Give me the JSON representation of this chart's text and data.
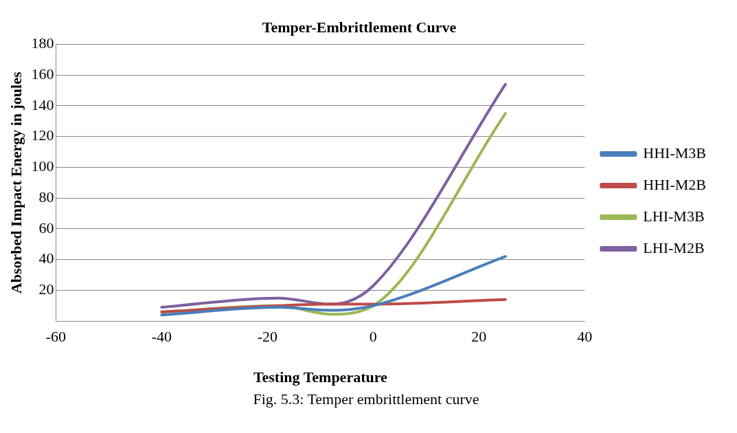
{
  "chart_data": {
    "type": "line",
    "title": "Temper-Embrittlement Curve",
    "xlabel": "Testing Temperature",
    "ylabel": "Absorbed Impact Energy in joules",
    "annotations": [
      "Fig. 5.3: Temper embrittlement curve"
    ],
    "x": [
      -40,
      -18,
      -8,
      0,
      25
    ],
    "series": [
      {
        "name": "HHI-M3B",
        "color": "#4a7ebb",
        "values": [
          4,
          9,
          7,
          10,
          42
        ]
      },
      {
        "name": "HHI-M2B",
        "color": "#be4b48",
        "values": [
          6,
          10,
          11,
          11,
          14
        ]
      },
      {
        "name": "LHI-M3B",
        "color": "#98b954",
        "values": [
          6,
          10,
          4.5,
          10,
          135
        ]
      },
      {
        "name": "LHI-M2B",
        "color": "#7d60a0",
        "values": [
          9,
          15,
          11,
          23,
          154
        ]
      }
    ],
    "xlim": [
      -60,
      40
    ],
    "xticks": [
      -60,
      -40,
      -20,
      0,
      20,
      40
    ],
    "ylim": [
      0,
      180
    ],
    "yticks": [
      {
        "value": 0,
        "label": null
      },
      20,
      40,
      60,
      80,
      100,
      120,
      140,
      160,
      180
    ],
    "grid": "y",
    "legend": "right",
    "marker": "none",
    "line_style": "solid"
  }
}
